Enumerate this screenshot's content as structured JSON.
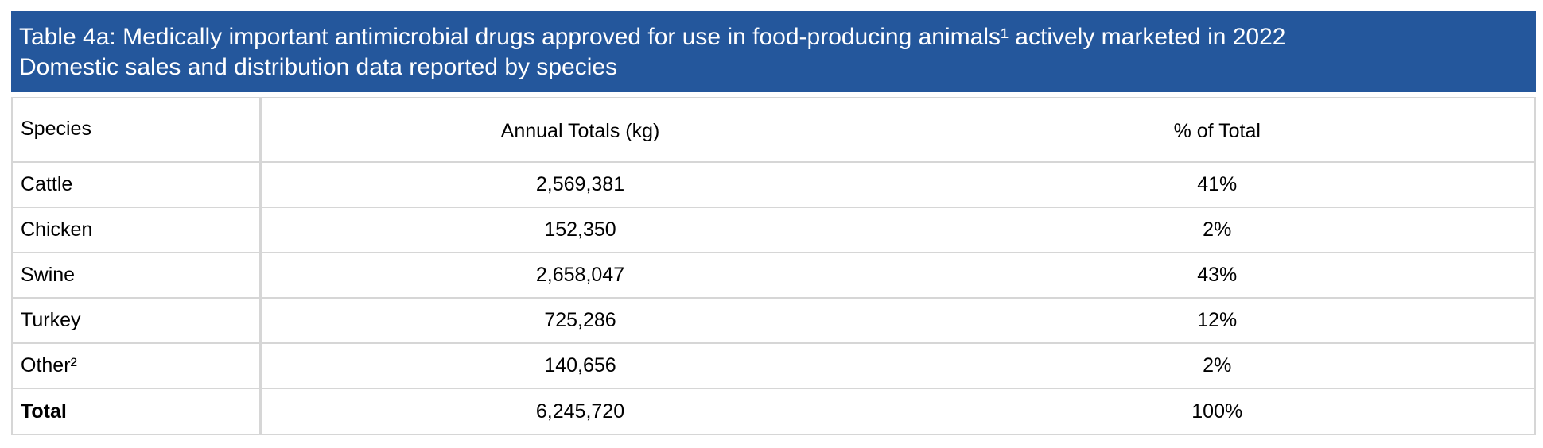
{
  "title": {
    "line1": "Table 4a: Medically important antimicrobial drugs approved for use in food-producing animals¹ actively marketed in 2022",
    "line2": "Domestic sales and distribution data reported by species"
  },
  "table": {
    "headers": [
      "Species",
      "Annual Totals (kg)",
      "% of Total"
    ],
    "rows": [
      {
        "species": "Cattle",
        "annual_totals": "2,569,381",
        "percent": "41%"
      },
      {
        "species": "Chicken",
        "annual_totals": "152,350",
        "percent": "2%"
      },
      {
        "species": "Swine",
        "annual_totals": "2,658,047",
        "percent": "43%"
      },
      {
        "species": "Turkey",
        "annual_totals": "725,286",
        "percent": "12%"
      },
      {
        "species": "Other²",
        "annual_totals": "140,656",
        "percent": "2%"
      },
      {
        "species": "Total",
        "annual_totals": "6,245,720",
        "percent": "100%"
      }
    ]
  },
  "colors": {
    "title_bg": "#24579c",
    "title_text": "#ffffff",
    "grid": "#d6d6d6"
  }
}
